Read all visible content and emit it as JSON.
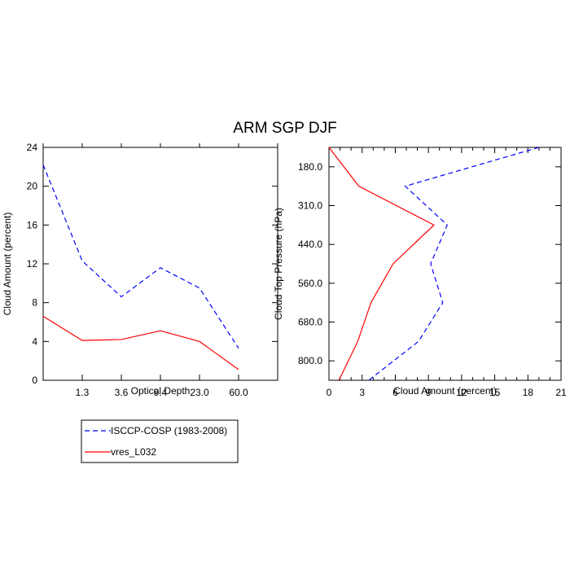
{
  "title": "ARM SGP DJF",
  "chart_data": [
    {
      "type": "line",
      "xlabel": "Optical Depth",
      "ylabel": "Cloud Amount (percent)",
      "ylim": [
        0,
        24
      ],
      "yticks": [
        "0",
        "4",
        "8",
        "12",
        "16",
        "20",
        "24"
      ],
      "xticks": [
        "1.3",
        "3.6",
        "9.4",
        "23.0",
        "60.0"
      ],
      "x_bins": [
        0,
        1,
        2,
        3,
        4,
        5,
        6
      ],
      "series": [
        {
          "name": "ISCCP-COSP (1983-2008)",
          "color": "#0000ff",
          "dash": true,
          "values": [
            22.2,
            12.3,
            8.6,
            11.6,
            9.5,
            3.3
          ]
        },
        {
          "name": "vres_L032",
          "color": "#ff0000",
          "dash": false,
          "values": [
            6.6,
            4.1,
            4.2,
            5.1,
            4.0,
            1.1
          ]
        }
      ]
    },
    {
      "type": "line",
      "xlabel": "Cloud Amount (percent)",
      "ylabel": "Cloud Top Pressure (hPa)",
      "xlim": [
        0,
        21
      ],
      "xticks": [
        "0",
        "3",
        "6",
        "9",
        "12",
        "15",
        "18",
        "21"
      ],
      "yticks": [
        "180.0",
        "310.0",
        "440.0",
        "560.0",
        "680.0",
        "800.0"
      ],
      "series": [
        {
          "name": "ISCCP-COSP (1983-2008)",
          "color": "#0000ff",
          "dash": true,
          "values": [
            19.0,
            6.9,
            10.7,
            9.2,
            10.3,
            8.1,
            3.6
          ]
        },
        {
          "name": "vres_L032",
          "color": "#ff0000",
          "dash": false,
          "values": [
            0.0,
            2.7,
            9.5,
            5.8,
            3.8,
            2.6,
            0.9
          ]
        }
      ]
    }
  ],
  "legend": [
    {
      "label": "ISCCP-COSP (1983-2008)",
      "color": "#0000ff",
      "dash": true
    },
    {
      "label": "vres_L032",
      "color": "#ff0000",
      "dash": false
    }
  ]
}
